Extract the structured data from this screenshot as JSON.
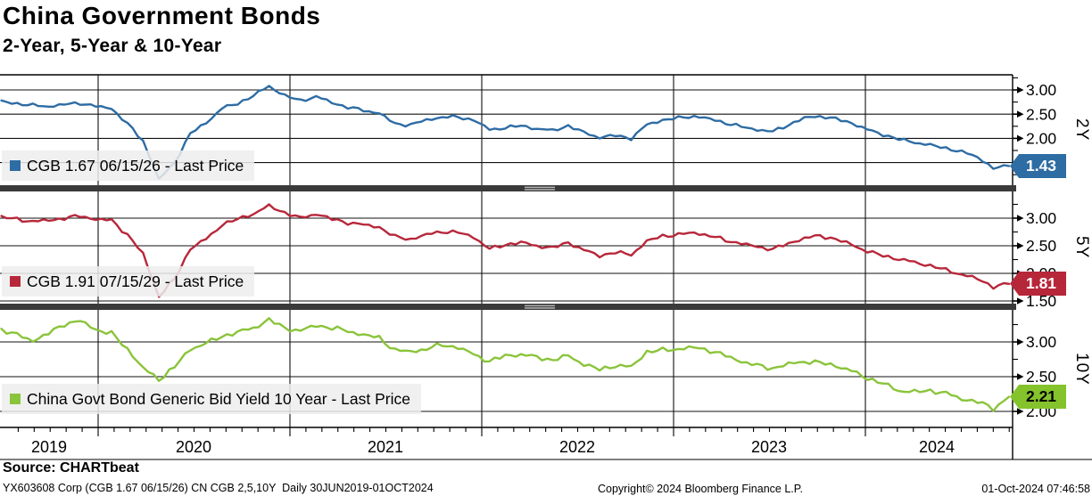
{
  "header": {
    "title": "China Government Bonds",
    "subtitle": "2-Year, 5-Year & 10-Year"
  },
  "chart_data": [
    {
      "type": "line",
      "axis_label": "2Y",
      "legend": "CGB 1.67 06/15/26 - Last Price",
      "color": "#2e6ca4",
      "last_price": "1.43",
      "badge_text_color": "#ffffff",
      "ylim": [
        1.05,
        3.3
      ],
      "yticks_labeled": [
        "3.00",
        "2.50",
        "2.00"
      ],
      "x_start": "30JUN2019",
      "x_end": "01OCT2024",
      "x_unit": "month",
      "values": [
        2.76,
        2.72,
        2.68,
        2.66,
        2.7,
        2.73,
        2.66,
        2.62,
        2.3,
        1.95,
        1.15,
        1.5,
        2.1,
        2.32,
        2.62,
        2.72,
        2.88,
        3.08,
        2.88,
        2.78,
        2.86,
        2.74,
        2.64,
        2.58,
        2.52,
        2.3,
        2.28,
        2.38,
        2.44,
        2.44,
        2.38,
        2.18,
        2.22,
        2.26,
        2.2,
        2.16,
        2.26,
        2.12,
        2.02,
        2.06,
        2.0,
        2.28,
        2.38,
        2.42,
        2.46,
        2.4,
        2.32,
        2.24,
        2.18,
        2.14,
        2.28,
        2.42,
        2.46,
        2.4,
        2.32,
        2.18,
        2.08,
        1.98,
        1.92,
        1.86,
        1.8,
        1.72,
        1.62,
        1.38,
        1.43
      ]
    },
    {
      "type": "line",
      "axis_label": "5Y",
      "legend": "CGB 1.91 07/15/29 - Last Price",
      "color": "#b7273a",
      "last_price": "1.81",
      "badge_text_color": "#ffffff",
      "ylim": [
        1.45,
        3.45
      ],
      "yticks_labeled": [
        "3.00",
        "2.50",
        "2.00"
      ],
      "x_start": "30JUN2019",
      "x_end": "01OCT2024",
      "x_unit": "month",
      "values": [
        3.02,
        2.98,
        2.94,
        2.96,
        3.0,
        3.04,
        2.98,
        2.96,
        2.7,
        2.35,
        1.58,
        1.9,
        2.45,
        2.62,
        2.88,
        2.98,
        3.08,
        3.22,
        3.1,
        3.0,
        3.08,
        2.98,
        2.92,
        2.88,
        2.84,
        2.66,
        2.62,
        2.7,
        2.76,
        2.74,
        2.66,
        2.44,
        2.52,
        2.56,
        2.5,
        2.46,
        2.56,
        2.42,
        2.32,
        2.38,
        2.34,
        2.58,
        2.68,
        2.7,
        2.74,
        2.68,
        2.6,
        2.54,
        2.48,
        2.44,
        2.54,
        2.64,
        2.68,
        2.62,
        2.52,
        2.4,
        2.32,
        2.26,
        2.2,
        2.14,
        2.06,
        1.98,
        1.9,
        1.76,
        1.81
      ]
    },
    {
      "type": "line",
      "axis_label": "10Y",
      "legend": "China Govt Bond Generic Bid Yield 10 Year - Last Price",
      "color": "#8ac43a",
      "last_price": "2.21",
      "badge_text_color": "#000000",
      "ylim": [
        1.78,
        3.43
      ],
      "yticks_labeled": [
        "3.00",
        "2.50",
        "2.00"
      ],
      "x_start": "30JUN2019",
      "x_end": "01OCT2024",
      "x_unit": "month",
      "values": [
        3.18,
        3.1,
        3.02,
        3.12,
        3.26,
        3.3,
        3.18,
        3.12,
        2.9,
        2.62,
        2.46,
        2.64,
        2.9,
        2.98,
        3.08,
        3.14,
        3.2,
        3.32,
        3.2,
        3.16,
        3.24,
        3.2,
        3.16,
        3.1,
        3.06,
        2.88,
        2.86,
        2.9,
        2.96,
        2.92,
        2.82,
        2.72,
        2.8,
        2.82,
        2.78,
        2.74,
        2.8,
        2.68,
        2.6,
        2.66,
        2.64,
        2.86,
        2.88,
        2.9,
        2.92,
        2.88,
        2.8,
        2.72,
        2.66,
        2.62,
        2.68,
        2.72,
        2.7,
        2.66,
        2.58,
        2.48,
        2.4,
        2.3,
        2.28,
        2.3,
        2.26,
        2.18,
        2.14,
        2.04,
        2.21
      ]
    }
  ],
  "x_axis": {
    "year_labels": [
      "2019",
      "2020",
      "2021",
      "2022",
      "2023",
      "2024"
    ],
    "range_label": "30JUN2019-01OCT2024"
  },
  "footer": {
    "source": "Source: CHARTbeat",
    "ticker_info": "YX603608 Corp (CGB 1.67 06/15/26) CN CGB 2,5,10Y  Daily 30JUN2019-01OCT2024",
    "copyright": "Copyright© 2024 Bloomberg Finance L.P.",
    "timestamp": "01-Oct-2024 07:46:58"
  }
}
